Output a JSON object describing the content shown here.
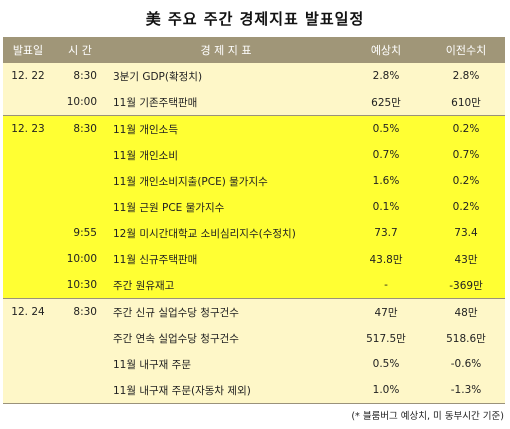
{
  "title": "美 주요 주간 경제지표 발표일정",
  "header": {
    "date": "발표일",
    "time": "시 간",
    "indicator": "경 제 지 표",
    "estimate": "예상치",
    "previous": "이전수치"
  },
  "groups": [
    {
      "date": "12. 22",
      "highlight": false,
      "rows": [
        {
          "time": "8:30",
          "indicator": "3분기 GDP(확정치)",
          "estimate": "2.8%",
          "previous": "2.8%"
        },
        {
          "time": "10:00",
          "indicator": "11월 기존주택판매",
          "estimate": "625만",
          "previous": "610만"
        }
      ]
    },
    {
      "date": "12. 23",
      "highlight": true,
      "rows": [
        {
          "time": "8:30",
          "indicator": "11월 개인소득",
          "estimate": "0.5%",
          "previous": "0.2%"
        },
        {
          "time": "",
          "indicator": "11월 개인소비",
          "estimate": "0.7%",
          "previous": "0.7%"
        },
        {
          "time": "",
          "indicator": "11월 개인소비지출(PCE) 물가지수",
          "estimate": "1.6%",
          "previous": "0.2%"
        },
        {
          "time": "",
          "indicator": "11월 근원 PCE 물가지수",
          "estimate": "0.1%",
          "previous": "0.2%"
        },
        {
          "time": "9:55",
          "indicator": "12월 미시간대학교 소비심리지수(수정치)",
          "estimate": "73.7",
          "previous": "73.4"
        },
        {
          "time": "10:00",
          "indicator": "11월 신규주택판매",
          "estimate": "43.8만",
          "previous": "43만"
        },
        {
          "time": "10:30",
          "indicator": "주간 원유재고",
          "estimate": "-",
          "previous": "-369만"
        }
      ]
    },
    {
      "date": "12. 24",
      "highlight": false,
      "rows": [
        {
          "time": "8:30",
          "indicator": "주간 신규 실업수당 청구건수",
          "estimate": "47만",
          "previous": "48만"
        },
        {
          "time": "",
          "indicator": "주간 연속 실업수당 청구건수",
          "estimate": "517.5만",
          "previous": "518.6만"
        },
        {
          "time": "",
          "indicator": "11월 내구재 주문",
          "estimate": "0.5%",
          "previous": "-0.6%"
        },
        {
          "time": "",
          "indicator": "11월 내구재 주문(자동차 제외)",
          "estimate": "1.0%",
          "previous": "-1.3%"
        }
      ]
    }
  ],
  "footer": "(* 블룸버그 예상치, 미 동부시간 기준)"
}
